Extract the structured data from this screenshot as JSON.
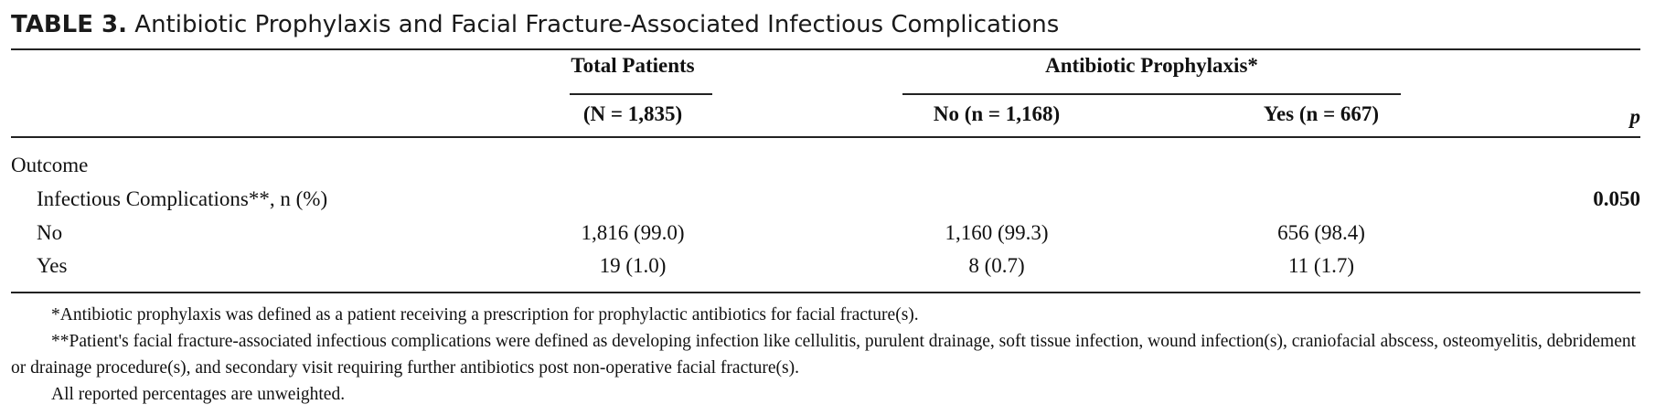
{
  "title": {
    "label": "TABLE 3.",
    "text": "Antibiotic Prophylaxis and Facial Fracture-Associated Infectious Complications"
  },
  "header": {
    "total_group": "Total Patients",
    "total_n": "(N = 1,835)",
    "prophylaxis_group": "Antibiotic Prophylaxis*",
    "no_col": "No (n = 1,168)",
    "yes_col": "Yes (n = 667)",
    "p_col": "p"
  },
  "rows": [
    {
      "label": "Outcome",
      "total": "",
      "no": "",
      "yes": "",
      "p": ""
    },
    {
      "label": "Infectious Complications**, n (%)",
      "total": "",
      "no": "",
      "yes": "",
      "p": "0.050"
    },
    {
      "label": "No",
      "total": "1,816 (99.0)",
      "no": "1,160 (99.3)",
      "yes": "656 (98.4)",
      "p": ""
    },
    {
      "label": "Yes",
      "total": "19 (1.0)",
      "no": "8 (0.7)",
      "yes": "11 (1.7)",
      "p": ""
    }
  ],
  "footnotes": [
    "*Antibiotic prophylaxis was defined as a patient receiving a prescription for prophylactic antibiotics for facial fracture(s).",
    "**Patient's facial fracture-associated infectious complications were defined as developing infection like cellulitis, purulent drainage, soft tissue infection, wound infection(s), craniofacial abscess, osteomyelitis, debridement or drainage procedure(s), and secondary visit requiring further antibiotics post non-operative facial fracture(s).",
    "All reported percentages are unweighted."
  ]
}
